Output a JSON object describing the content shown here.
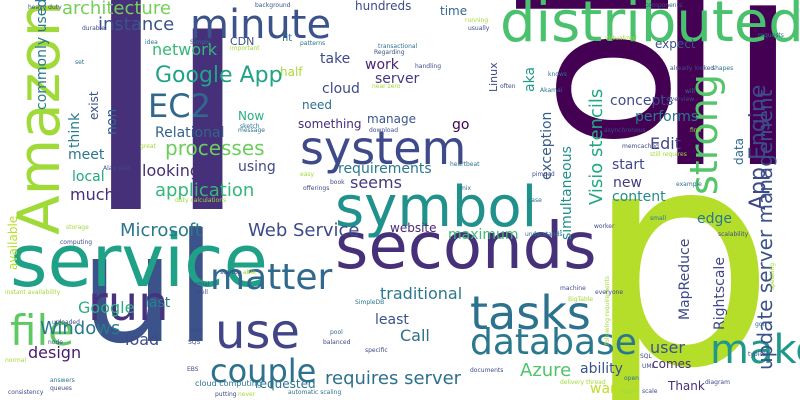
{
  "words": [
    {
      "text": "li",
      "color": "#46307a"
    },
    {
      "text": "p",
      "color": "#b5de2b"
    },
    {
      "text": "li",
      "color": "#440154"
    },
    {
      "text": "ol",
      "color": "#440154"
    },
    {
      "text": "ul",
      "color": "#3b528b"
    },
    {
      "text": "service",
      "color": "#1fa187"
    },
    {
      "text": "seconds",
      "color": "#46307a"
    },
    {
      "text": "distributed",
      "color": "#4ac16d"
    },
    {
      "text": "Amazon",
      "color": "#a0da39"
    },
    {
      "text": "symbol",
      "color": "#21918c"
    },
    {
      "text": "system",
      "color": "#3e4a89"
    },
    {
      "text": "run",
      "color": "#46327e"
    },
    {
      "text": "use",
      "color": "#414487"
    },
    {
      "text": "minute",
      "color": "#3b528b"
    },
    {
      "text": "tasks",
      "color": "#2c728e"
    },
    {
      "text": "make",
      "color": "#1f988b"
    },
    {
      "text": "database",
      "color": "#2a788e"
    },
    {
      "text": "file",
      "color": "#5ec962"
    },
    {
      "text": "couple",
      "color": "#2c728e"
    },
    {
      "text": "matter",
      "color": "#31688e"
    },
    {
      "text": "EC2",
      "color": "#31688e"
    },
    {
      "text": "Google App",
      "color": "#20a386"
    },
    {
      "text": "strong",
      "color": "#54c568"
    },
    {
      "text": "update server management",
      "color": "#3b528b"
    },
    {
      "text": "App Engine",
      "color": "#3e4989"
    },
    {
      "text": "Visio stencils",
      "color": "#22a884"
    },
    {
      "text": "processes",
      "color": "#6ccd5a"
    },
    {
      "text": "application",
      "color": "#35b779"
    },
    {
      "text": "Microsoft",
      "color": "#2a788e"
    },
    {
      "text": "Web Service",
      "color": "#3e4a89"
    },
    {
      "text": "requires server",
      "color": "#2d708e"
    },
    {
      "text": "Azure",
      "color": "#50c46a"
    },
    {
      "text": "Windows",
      "color": "#2a788e"
    },
    {
      "text": "architecture",
      "color": "#73d056"
    },
    {
      "text": "instance",
      "color": "#3b528b"
    },
    {
      "text": "network",
      "color": "#35b779"
    },
    {
      "text": "Relational",
      "color": "#33638d"
    },
    {
      "text": "Rightscale",
      "color": "#404688"
    },
    {
      "text": "MapReduce",
      "color": "#3e4a89"
    },
    {
      "text": "Call",
      "color": "#2e6e8e"
    },
    {
      "text": "user",
      "color": "#3b528b"
    },
    {
      "text": "looking",
      "color": "#46307a"
    },
    {
      "text": "much",
      "color": "#472d7b"
    },
    {
      "text": "load",
      "color": "#3e4a89"
    },
    {
      "text": "design",
      "color": "#481b6d"
    },
    {
      "text": "Google",
      "color": "#29af7f"
    },
    {
      "text": "last",
      "color": "#26828e"
    },
    {
      "text": "local",
      "color": "#22a884"
    },
    {
      "text": "meet",
      "color": "#2a788e"
    },
    {
      "text": "think",
      "color": "#287d8e"
    },
    {
      "text": "exist",
      "color": "#3b528b"
    },
    {
      "text": "commonly used",
      "color": "#2a788e"
    },
    {
      "text": "available",
      "color": "#b5de2b"
    },
    {
      "text": "non",
      "color": "#31688e"
    },
    {
      "text": "Now",
      "color": "#2ab07f"
    },
    {
      "text": "using",
      "color": "#3e4a89"
    },
    {
      "text": "seems",
      "color": "#453781"
    },
    {
      "text": "website",
      "color": "#482878"
    },
    {
      "text": "maximum",
      "color": "#3fbc73"
    },
    {
      "text": "traditional",
      "color": "#2a788e"
    },
    {
      "text": "least",
      "color": "#3b528b"
    },
    {
      "text": "start",
      "color": "#404688"
    },
    {
      "text": "content",
      "color": "#228c8d"
    },
    {
      "text": "new",
      "color": "#453882"
    },
    {
      "text": "ability",
      "color": "#3b528b"
    },
    {
      "text": "requested",
      "color": "#2c728e"
    },
    {
      "text": "Thank",
      "color": "#46307a"
    },
    {
      "text": "want",
      "color": "#bddf26"
    },
    {
      "text": "comes",
      "color": "#46307a"
    },
    {
      "text": "edge",
      "color": "#2a788e"
    },
    {
      "text": "data",
      "color": "#31688e"
    },
    {
      "text": "Edit",
      "color": "#404688"
    },
    {
      "text": "performs",
      "color": "#2a788e"
    },
    {
      "text": "concepts",
      "color": "#3e4a89"
    },
    {
      "text": "expect",
      "color": "#3b528b"
    },
    {
      "text": "aka",
      "color": "#1f998a"
    },
    {
      "text": "go",
      "color": "#440154"
    },
    {
      "text": "exception",
      "color": "#365c8d"
    },
    {
      "text": "simultaneous",
      "color": "#218f8d"
    },
    {
      "text": "requirements",
      "color": "#2a788e"
    },
    {
      "text": "something",
      "color": "#472d7b"
    },
    {
      "text": "manage",
      "color": "#39568c"
    },
    {
      "text": "work",
      "color": "#482475"
    },
    {
      "text": "server",
      "color": "#453882"
    },
    {
      "text": "cloud",
      "color": "#3e4a89"
    },
    {
      "text": "need",
      "color": "#2d708e"
    },
    {
      "text": "take",
      "color": "#3e4a89"
    },
    {
      "text": "half",
      "color": "#a8db34"
    },
    {
      "text": "hundreds",
      "color": "#3e4a89"
    },
    {
      "text": "time",
      "color": "#31688e"
    },
    {
      "text": "Linux",
      "color": "#3e4a89"
    },
    {
      "text": "CDN",
      "color": "#3b528b"
    },
    {
      "text": "fit",
      "color": "#2c728e"
    },
    {
      "text": "heavy duty",
      "color": "#3e4a89"
    },
    {
      "text": "background",
      "color": "#3b528b"
    },
    {
      "text": "components",
      "color": "#3e4a89"
    },
    {
      "text": "running",
      "color": "#a0da39"
    },
    {
      "text": "usually",
      "color": "#3e4a89"
    },
    {
      "text": "transactional",
      "color": "#2c728e"
    },
    {
      "text": "Regarding",
      "color": "#3b528b"
    },
    {
      "text": "patterns",
      "color": "#2c728e"
    },
    {
      "text": "important",
      "color": "#a0da39"
    },
    {
      "text": "Simply",
      "color": "#2c728e"
    },
    {
      "text": "idea",
      "color": "#2c728e"
    },
    {
      "text": "durable",
      "color": "#3e4a89"
    },
    {
      "text": "set",
      "color": "#2c728e"
    },
    {
      "text": "handling",
      "color": "#3e4a89"
    },
    {
      "text": "near zero",
      "color": "#a0da39"
    },
    {
      "text": "Akamai",
      "color": "#2c728e"
    },
    {
      "text": "often",
      "color": "#3e4a89"
    },
    {
      "text": "knows",
      "color": "#2c728e"
    },
    {
      "text": "virtualized",
      "color": "#a0da39"
    },
    {
      "text": "already looked",
      "color": "#3e4a89"
    },
    {
      "text": "shapes",
      "color": "#2c728e"
    },
    {
      "text": "will",
      "color": "#2c728e"
    },
    {
      "text": "overview",
      "color": "#3e4a89"
    },
    {
      "text": "requests",
      "color": "#2c728e"
    },
    {
      "text": "asynchronous",
      "color": "#3e4a89"
    },
    {
      "text": "fine",
      "color": "#a0da39"
    },
    {
      "text": "still requires",
      "color": "#a0da39"
    },
    {
      "text": "memcached",
      "color": "#3e4a89"
    },
    {
      "text": "heartbeat",
      "color": "#2c728e"
    },
    {
      "text": "pimped",
      "color": "#3e4a89"
    },
    {
      "text": "download",
      "color": "#3e4a89"
    },
    {
      "text": "message",
      "color": "#2c728e"
    },
    {
      "text": "Alan said",
      "color": "#3e4a89"
    },
    {
      "text": "sketch",
      "color": "#2c728e"
    },
    {
      "text": "great",
      "color": "#a0da39"
    },
    {
      "text": "easy",
      "color": "#a0da39"
    },
    {
      "text": "book",
      "color": "#3e4a89"
    },
    {
      "text": "offerings",
      "color": "#3e4a89"
    },
    {
      "text": "duty calculations",
      "color": "#a0da39"
    },
    {
      "text": "mix",
      "color": "#2c728e"
    },
    {
      "text": "case",
      "color": "#2c728e"
    },
    {
      "text": "example",
      "color": "#2c728e"
    },
    {
      "text": "small",
      "color": "#2c728e"
    },
    {
      "text": "scalability",
      "color": "#3e4a89"
    },
    {
      "text": "storage",
      "color": "#a0da39"
    },
    {
      "text": "computing",
      "color": "#3e4a89"
    },
    {
      "text": "instant availability",
      "color": "#a0da39"
    },
    {
      "text": "understands",
      "color": "#2c728e"
    },
    {
      "text": "worker",
      "color": "#3e4a89"
    },
    {
      "text": "startup",
      "color": "#3e4a89"
    },
    {
      "text": "able",
      "color": "#a0da39"
    },
    {
      "text": "SimpleDB",
      "color": "#2c728e"
    },
    {
      "text": "following requirements",
      "color": "#a0da39"
    },
    {
      "text": "machine",
      "color": "#3e4a89"
    },
    {
      "text": "everyone",
      "color": "#3e4a89"
    },
    {
      "text": "BigTable",
      "color": "#a0da39"
    },
    {
      "text": "got",
      "color": "#2c728e"
    },
    {
      "text": "speaking",
      "color": "#a0da39"
    },
    {
      "text": "typical",
      "color": "#3e4a89"
    },
    {
      "text": "SQL",
      "color": "#3e4a89"
    },
    {
      "text": "UML",
      "color": "#3e4a89"
    },
    {
      "text": "open",
      "color": "#2c728e"
    },
    {
      "text": "diagram",
      "color": "#3e4a89"
    },
    {
      "text": "leave",
      "color": "#a0da39"
    },
    {
      "text": "scale",
      "color": "#3e4a89"
    },
    {
      "text": "delivery thread",
      "color": "#a0da39"
    },
    {
      "text": "documents",
      "color": "#3e4a89"
    },
    {
      "text": "specific",
      "color": "#3e4a89"
    },
    {
      "text": "pool",
      "color": "#2c728e"
    },
    {
      "text": "balanced",
      "color": "#3e4a89"
    },
    {
      "text": "automatic scaling",
      "color": "#2c728e"
    },
    {
      "text": "putting",
      "color": "#3e4a89"
    },
    {
      "text": "never",
      "color": "#a0da39"
    },
    {
      "text": "SQS",
      "color": "#3e4a89"
    },
    {
      "text": "SAN",
      "color": "#3e4a89"
    },
    {
      "text": "well",
      "color": "#3e4a89"
    },
    {
      "text": "cloud computing",
      "color": "#2c728e"
    },
    {
      "text": "EBS",
      "color": "#3e4a89"
    },
    {
      "text": "formal",
      "color": "#3e4a89"
    },
    {
      "text": "node",
      "color": "#3e4a89"
    },
    {
      "text": "answers",
      "color": "#2c728e"
    },
    {
      "text": "queues",
      "color": "#3e4a89"
    },
    {
      "text": "consistency",
      "color": "#3e4a89"
    },
    {
      "text": "normal",
      "color": "#a0da39"
    },
    {
      "text": "uploaded",
      "color": "#3e4a89"
    }
  ]
}
